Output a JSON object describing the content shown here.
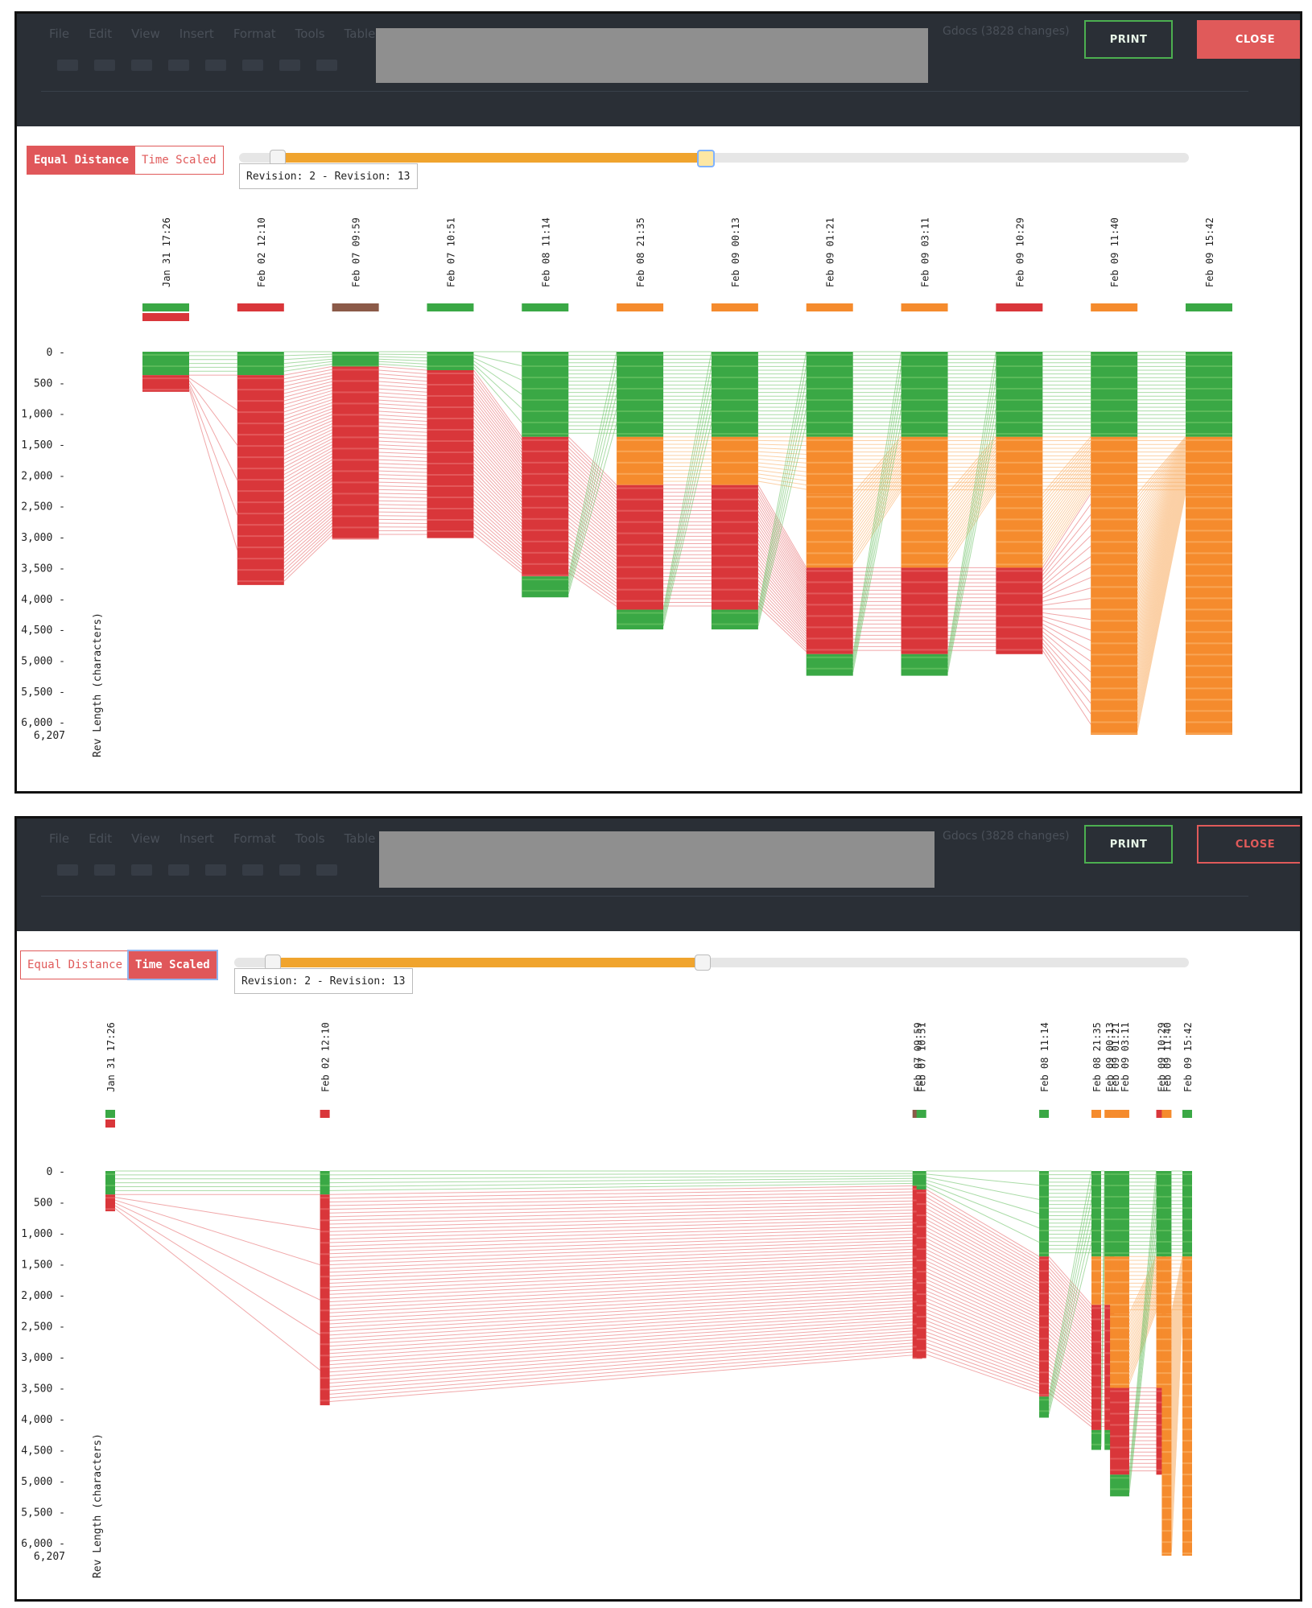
{
  "topbar": {
    "menu_items": [
      "File",
      "Edit",
      "View",
      "Insert",
      "Format",
      "Tools",
      "Table"
    ],
    "changes_text": "Gdocs (3828 changes)",
    "print_label": "PRINT",
    "close_label": "CLOSE"
  },
  "controls": {
    "equal_distance_label": "Equal Distance",
    "time_scaled_label": "Time Scaled",
    "revision_range_text": "Revision: 2 - Revision: 13",
    "slider_start_fraction": 0.04,
    "slider_end_fraction": 0.49
  },
  "colors": {
    "green": "#3aa845",
    "green_light": "#63be5e",
    "red": "#d9363a",
    "red_light": "#e56163",
    "orange": "#f58b2d",
    "orange_light": "#f9ab5e",
    "brown": "#8b5a48",
    "accent_red": "#e0575a",
    "slider_orange": "#f0a42e"
  },
  "chart_data": [
    {
      "type": "flow",
      "mode": "Equal Distance",
      "ylabel": "Rev Length (characters)",
      "yticks": [
        "0",
        "500",
        "1,000",
        "1,500",
        "2,000",
        "2,500",
        "3,000",
        "3,500",
        "4,000",
        "4,500",
        "5,000",
        "5,500",
        "6,000",
        "6,207"
      ],
      "ymax": 6207,
      "revisions": [
        {
          "label": "Jan 31 17:26",
          "indicator": [
            "green",
            "red"
          ],
          "time_h": 0
        },
        {
          "label": "Feb 02 12:10",
          "indicator": [
            "red"
          ],
          "time_h": 42.7
        },
        {
          "label": "Feb 07 09:59",
          "indicator": [
            "brown"
          ],
          "time_h": 160.6
        },
        {
          "label": "Feb 07 10:51",
          "indicator": [
            "green"
          ],
          "time_h": 161.4
        },
        {
          "label": "Feb 08 11:14",
          "indicator": [
            "green"
          ],
          "time_h": 185.8
        },
        {
          "label": "Feb 08 21:35",
          "indicator": [
            "orange"
          ],
          "time_h": 196.2
        },
        {
          "label": "Feb 09 00:13",
          "indicator": [
            "orange"
          ],
          "time_h": 198.8
        },
        {
          "label": "Feb 09 01:21",
          "indicator": [
            "orange"
          ],
          "time_h": 199.9
        },
        {
          "label": "Feb 09 03:11",
          "indicator": [
            "orange"
          ],
          "time_h": 201.8
        },
        {
          "label": "Feb 09 10:29",
          "indicator": [
            "red"
          ],
          "time_h": 209.1
        },
        {
          "label": "Feb 09 11:40",
          "indicator": [
            "orange"
          ],
          "time_h": 210.2
        },
        {
          "label": "Feb 09 15:42",
          "indicator": [
            "green"
          ],
          "time_h": 214.3
        }
      ]
    },
    {
      "type": "flow",
      "mode": "Time Scaled",
      "ylabel": "Rev Length (characters)",
      "yticks": [
        "0",
        "500",
        "1,000",
        "1,500",
        "2,000",
        "2,500",
        "3,000",
        "3,500",
        "4,000",
        "4,500",
        "5,000",
        "5,500",
        "6,000",
        "6,207"
      ],
      "ymax": 6207,
      "revisions": [
        {
          "label": "Jan 31 17:26"
        },
        {
          "label": "Feb 02 12:10"
        },
        {
          "label": "Feb 07 09:59"
        },
        {
          "label": "Feb 07 10:51"
        },
        {
          "label": "Feb 08 11:14"
        },
        {
          "label": "Feb 08 21:35"
        },
        {
          "label": "Feb 09 00:13"
        },
        {
          "label": "Feb 09 01:21"
        },
        {
          "label": "Feb 09 03:11"
        },
        {
          "label": "Feb 09 10:29"
        },
        {
          "label": "Feb 09 11:40"
        },
        {
          "label": "Feb 09 15:42"
        }
      ]
    }
  ]
}
